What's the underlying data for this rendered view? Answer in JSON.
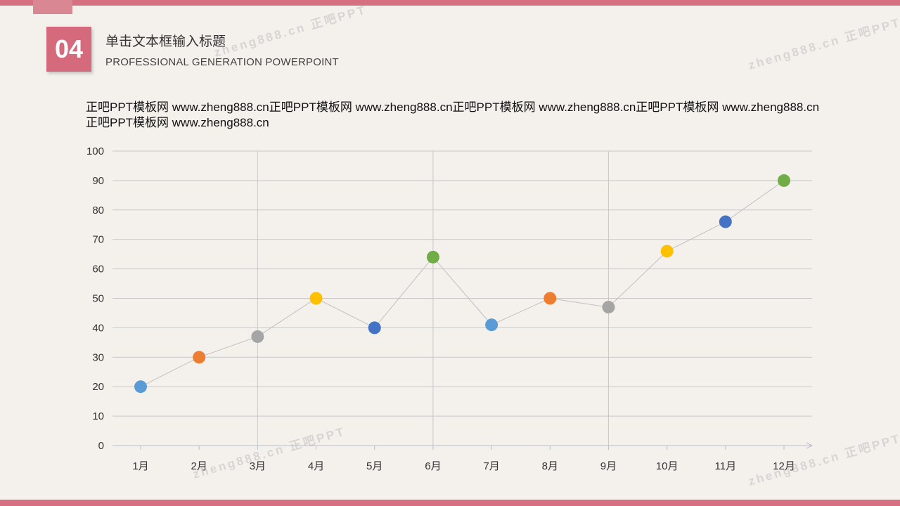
{
  "header": {
    "number": "04",
    "title": "单击文本框输入标题",
    "subtitle": "PROFESSIONAL GENERATION POWERPOINT"
  },
  "body_text": "正吧PPT模板网 www.zheng888.cn正吧PPT模板网 www.zheng888.cn正吧PPT模板网 www.zheng888.cn正吧PPT模板网 www.zheng888.cn正吧PPT模板网 www.zheng888.cn",
  "watermark": "zheng888.cn 正吧PPT",
  "chart_data": {
    "type": "line",
    "categories": [
      "1月",
      "2月",
      "3月",
      "4月",
      "5月",
      "6月",
      "7月",
      "8月",
      "9月",
      "10月",
      "11月",
      "12月"
    ],
    "values": [
      20,
      30,
      37,
      50,
      40,
      64,
      41,
      50,
      47,
      66,
      76,
      90
    ],
    "point_colors": [
      "#5b9bd5",
      "#ed7d31",
      "#a5a5a5",
      "#ffc000",
      "#4472c4",
      "#70ad47",
      "#5b9bd5",
      "#ed7d31",
      "#a5a5a5",
      "#ffc000",
      "#4472c4",
      "#70ad47"
    ],
    "line_color": "#c0c0c0",
    "ylim": [
      0,
      100
    ],
    "yticks": [
      0,
      10,
      20,
      30,
      40,
      50,
      60,
      70,
      80,
      90,
      100
    ],
    "vertical_gridlines_after": [
      "3月",
      "6月",
      "9月"
    ],
    "grid": true,
    "legend": "none",
    "title": "",
    "xlabel": "",
    "ylabel": ""
  }
}
